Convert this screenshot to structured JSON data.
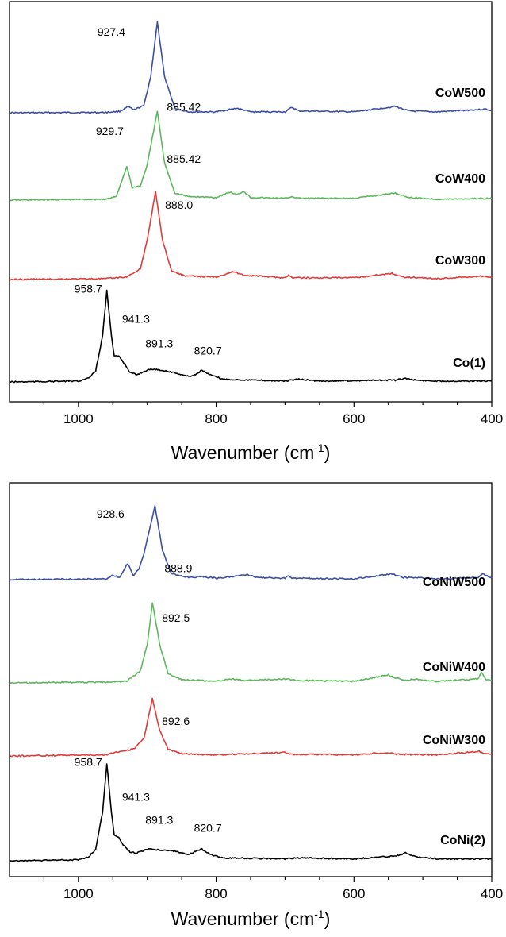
{
  "chart_data": [
    {
      "type": "line",
      "x_axis": {
        "label": "Wavenumber (cm",
        "label_sup": "-1",
        "label_close": ")",
        "range": [
          1100,
          400
        ],
        "reversed": true,
        "ticks": [
          1000,
          800,
          600,
          400
        ],
        "tick_labels": [
          "1000",
          "800",
          "600",
          "400"
        ]
      },
      "y_axis": {
        "visible": false
      },
      "grid": false,
      "series": [
        {
          "name": "CoW500",
          "color": "#3a4fa3",
          "points": [
            [
              1100,
              0
            ],
            [
              960,
              0.4
            ],
            [
              940,
              1.5
            ],
            [
              927.4,
              7
            ],
            [
              920,
              3
            ],
            [
              905,
              8
            ],
            [
              895,
              40
            ],
            [
              885.42,
              100
            ],
            [
              875,
              40
            ],
            [
              860,
              5
            ],
            [
              840,
              1
            ],
            [
              800,
              1
            ],
            [
              770,
              5
            ],
            [
              750,
              1
            ],
            [
              700,
              1
            ],
            [
              690,
              6
            ],
            [
              680,
              2
            ],
            [
              600,
              1
            ],
            [
              540,
              7
            ],
            [
              520,
              2
            ],
            [
              480,
              1
            ],
            [
              408,
              4
            ],
            [
              400,
              2
            ]
          ],
          "peaks": [
            {
              "x": 927.4,
              "label": "927.4"
            },
            {
              "x": 885.42,
              "label": "885.42"
            }
          ]
        },
        {
          "name": "CoW400",
          "color": "#5cb85c",
          "points": [
            [
              1100,
              0
            ],
            [
              960,
              1
            ],
            [
              945,
              4
            ],
            [
              929.7,
              38
            ],
            [
              922,
              14
            ],
            [
              910,
              16
            ],
            [
              900,
              40
            ],
            [
              885.42,
              100
            ],
            [
              875,
              42
            ],
            [
              860,
              8
            ],
            [
              840,
              4
            ],
            [
              800,
              3
            ],
            [
              780,
              9
            ],
            [
              770,
              6
            ],
            [
              760,
              10
            ],
            [
              750,
              3
            ],
            [
              700,
              2
            ],
            [
              690,
              4
            ],
            [
              680,
              2
            ],
            [
              600,
              2
            ],
            [
              540,
              8
            ],
            [
              520,
              3
            ],
            [
              480,
              1
            ],
            [
              400,
              2
            ]
          ],
          "peaks": [
            {
              "x": 929.7,
              "label": "929.7"
            },
            {
              "x": 885.42,
              "label": "885.42"
            }
          ]
        },
        {
          "name": "CoW300",
          "color": "#e03a3a",
          "points": [
            [
              1100,
              0
            ],
            [
              960,
              1
            ],
            [
              930,
              3
            ],
            [
              910,
              12
            ],
            [
              900,
              45
            ],
            [
              888.0,
              100
            ],
            [
              878,
              45
            ],
            [
              865,
              10
            ],
            [
              845,
              4
            ],
            [
              800,
              3
            ],
            [
              775,
              9
            ],
            [
              760,
              5
            ],
            [
              700,
              2
            ],
            [
              695,
              5
            ],
            [
              690,
              2
            ],
            [
              600,
              2
            ],
            [
              545,
              7
            ],
            [
              530,
              3
            ],
            [
              480,
              1
            ],
            [
              410,
              4
            ],
            [
              400,
              2
            ]
          ],
          "peaks": [
            {
              "x": 888.0,
              "label": "888.0"
            }
          ]
        },
        {
          "name": "Co(1)",
          "color": "#000000",
          "points": [
            [
              1100,
              0
            ],
            [
              1000,
              1
            ],
            [
              985,
              4
            ],
            [
              975,
              12
            ],
            [
              965,
              50
            ],
            [
              958.7,
              100
            ],
            [
              952,
              50
            ],
            [
              948,
              28
            ],
            [
              941.3,
              29
            ],
            [
              935,
              22
            ],
            [
              925,
              10
            ],
            [
              915,
              8
            ],
            [
              900,
              13
            ],
            [
              891.3,
              14
            ],
            [
              880,
              13
            ],
            [
              860,
              10
            ],
            [
              840,
              6
            ],
            [
              830,
              8
            ],
            [
              820.7,
              13
            ],
            [
              810,
              8
            ],
            [
              790,
              3
            ],
            [
              700,
              1
            ],
            [
              680,
              3
            ],
            [
              650,
              1
            ],
            [
              540,
              2
            ],
            [
              525,
              4
            ],
            [
              510,
              2
            ],
            [
              480,
              1
            ],
            [
              400,
              1
            ]
          ],
          "peaks": [
            {
              "x": 958.7,
              "label": "958.7"
            },
            {
              "x": 941.3,
              "label": "941.3"
            },
            {
              "x": 891.3,
              "label": "891.3"
            },
            {
              "x": 820.7,
              "label": "820.7"
            }
          ]
        }
      ]
    },
    {
      "type": "line",
      "x_axis": {
        "label": "Wavenumber (cm",
        "label_sup": "-1",
        "label_close": ")",
        "range": [
          1100,
          400
        ],
        "reversed": true,
        "ticks": [
          1000,
          800,
          600,
          400
        ],
        "tick_labels": [
          "1000",
          "800",
          "600",
          "400"
        ]
      },
      "y_axis": {
        "visible": false
      },
      "grid": false,
      "series": [
        {
          "name": "CoNiW500",
          "color": "#3a4fa3",
          "points": [
            [
              1100,
              0
            ],
            [
              960,
              1
            ],
            [
              950,
              6
            ],
            [
              940,
              3
            ],
            [
              928.6,
              22
            ],
            [
              920,
              6
            ],
            [
              912,
              14
            ],
            [
              905,
              35
            ],
            [
              888.9,
              100
            ],
            [
              878,
              40
            ],
            [
              865,
              8
            ],
            [
              840,
              3
            ],
            [
              820,
              4
            ],
            [
              800,
              2
            ],
            [
              770,
              5
            ],
            [
              755,
              7
            ],
            [
              740,
              3
            ],
            [
              700,
              2
            ],
            [
              695,
              5
            ],
            [
              690,
              2
            ],
            [
              670,
              2
            ],
            [
              600,
              1
            ],
            [
              545,
              8
            ],
            [
              530,
              3
            ],
            [
              515,
              3
            ],
            [
              480,
              1
            ],
            [
              420,
              3
            ],
            [
              413,
              8
            ],
            [
              400,
              2
            ]
          ],
          "peaks": [
            {
              "x": 928.6,
              "label": "928.6"
            },
            {
              "x": 888.9,
              "label": "888.9"
            }
          ]
        },
        {
          "name": "CoNiW400",
          "color": "#5cb85c",
          "points": [
            [
              1100,
              0
            ],
            [
              960,
              1
            ],
            [
              930,
              2
            ],
            [
              910,
              15
            ],
            [
              900,
              48
            ],
            [
              892.5,
              100
            ],
            [
              882,
              48
            ],
            [
              870,
              12
            ],
            [
              850,
              4
            ],
            [
              800,
              2
            ],
            [
              780,
              5
            ],
            [
              760,
              3
            ],
            [
              700,
              5
            ],
            [
              690,
              4
            ],
            [
              680,
              3
            ],
            [
              600,
              2
            ],
            [
              550,
              10
            ],
            [
              540,
              6
            ],
            [
              520,
              3
            ],
            [
              515,
              5
            ],
            [
              480,
              2
            ],
            [
              420,
              5
            ],
            [
              415,
              14
            ],
            [
              408,
              4
            ],
            [
              400,
              3
            ]
          ],
          "peaks": [
            {
              "x": 892.5,
              "label": "892.5"
            }
          ]
        },
        {
          "name": "CoNiW300",
          "color": "#e03a3a",
          "points": [
            [
              1100,
              0
            ],
            [
              960,
              2
            ],
            [
              940,
              8
            ],
            [
              920,
              12
            ],
            [
              905,
              30
            ],
            [
              892.6,
              100
            ],
            [
              882,
              45
            ],
            [
              870,
              12
            ],
            [
              850,
              4
            ],
            [
              800,
              2
            ],
            [
              700,
              6
            ],
            [
              690,
              3
            ],
            [
              600,
              2
            ],
            [
              550,
              6
            ],
            [
              540,
              3
            ],
            [
              480,
              2
            ],
            [
              418,
              8
            ],
            [
              410,
              4
            ],
            [
              400,
              3
            ]
          ],
          "peaks": [
            {
              "x": 892.6,
              "label": "892.6"
            }
          ]
        },
        {
          "name": "CoNi(2)",
          "color": "#000000",
          "points": [
            [
              1100,
              0
            ],
            [
              1000,
              1
            ],
            [
              985,
              4
            ],
            [
              975,
              12
            ],
            [
              965,
              50
            ],
            [
              958.7,
              100
            ],
            [
              952,
              50
            ],
            [
              948,
              26
            ],
            [
              941.3,
              24
            ],
            [
              935,
              16
            ],
            [
              925,
              9
            ],
            [
              915,
              8
            ],
            [
              900,
              12
            ],
            [
              891.3,
              12
            ],
            [
              880,
              11
            ],
            [
              860,
              10
            ],
            [
              840,
              6
            ],
            [
              830,
              10
            ],
            [
              820.7,
              12
            ],
            [
              810,
              7
            ],
            [
              790,
              3
            ],
            [
              700,
              2
            ],
            [
              680,
              3
            ],
            [
              600,
              2
            ],
            [
              540,
              5
            ],
            [
              525,
              8
            ],
            [
              510,
              4
            ],
            [
              480,
              2
            ],
            [
              400,
              2
            ]
          ],
          "peaks": [
            {
              "x": 958.7,
              "label": "958.7"
            },
            {
              "x": 941.3,
              "label": "941.3"
            },
            {
              "x": 891.3,
              "label": "891.3"
            },
            {
              "x": 820.7,
              "label": "820.7"
            }
          ]
        }
      ]
    }
  ]
}
